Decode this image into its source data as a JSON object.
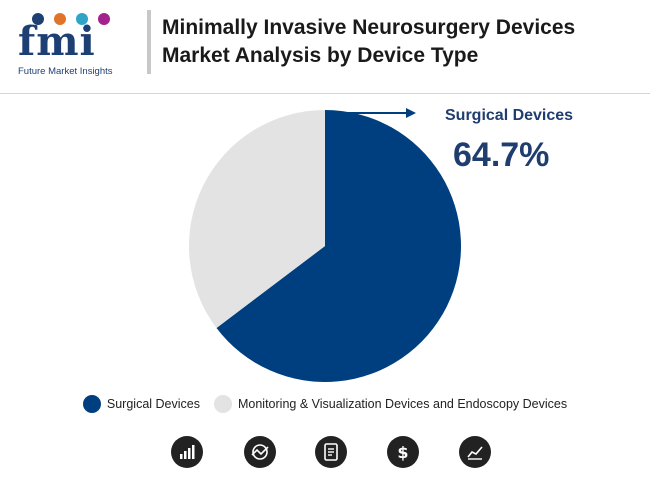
{
  "header": {
    "logo_text": "fmi",
    "logo_tagline": "Future Market Insights",
    "title": "Minimally Invasive Neurosurgery Devices Market Analysis by Device Type"
  },
  "colors": {
    "surgical": "#003f7f",
    "monitoring": "#e3e3e3",
    "accent_text": "#1f3d6e"
  },
  "chart_data": {
    "type": "pie",
    "slices": [
      {
        "label": "Surgical Devices",
        "value": 64.7
      },
      {
        "label": "Monitoring & Visualization Devices and Endoscopy Devices",
        "value": 35.3
      }
    ],
    "callout": {
      "label": "Surgical Devices",
      "value_text": "64.7%"
    },
    "legend": [
      "Surgical Devices",
      "Monitoring & Visualization Devices and Endoscopy Devices"
    ],
    "legend_position": "bottom"
  },
  "footer_icons": [
    "bar-chart-icon",
    "globe-trend-icon",
    "report-document-icon",
    "dollar-icon",
    "line-chart-icon"
  ]
}
